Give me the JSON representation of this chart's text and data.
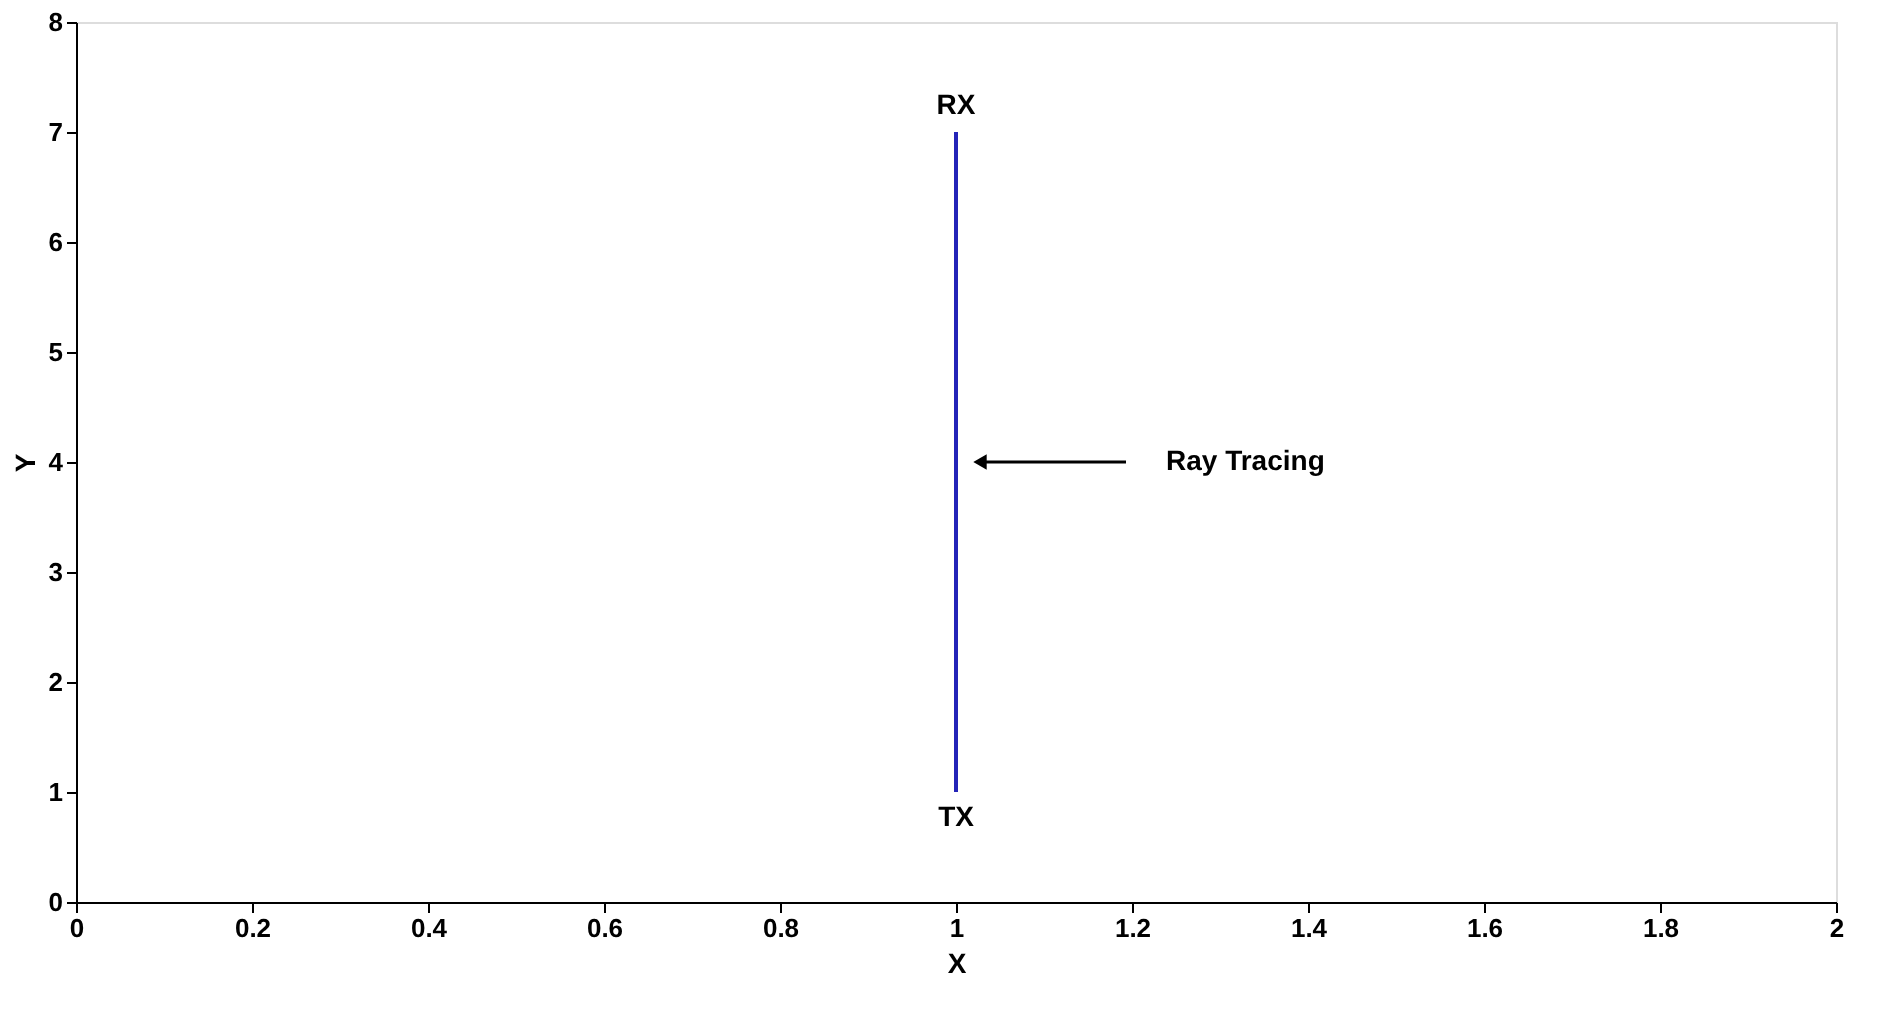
{
  "chart_data": {
    "type": "line",
    "xlabel": "X",
    "ylabel": "Y",
    "series": [
      {
        "x": [
          1,
          1
        ],
        "values": [
          1,
          7
        ],
        "color": "#2424b8"
      }
    ],
    "xlim": [
      0,
      2
    ],
    "xticks": [
      0,
      0.2,
      0.4,
      0.6,
      0.8,
      1,
      1.2,
      1.4,
      1.6,
      1.8,
      2
    ],
    "marker": "none",
    "ylim": [
      0,
      8
    ],
    "yticks": [
      0,
      1,
      2,
      3,
      4,
      5,
      6,
      7,
      8
    ],
    "grid": false,
    "line_style": "solid",
    "annotations": [
      "RX",
      "TX",
      "Ray Tracing"
    ]
  }
}
